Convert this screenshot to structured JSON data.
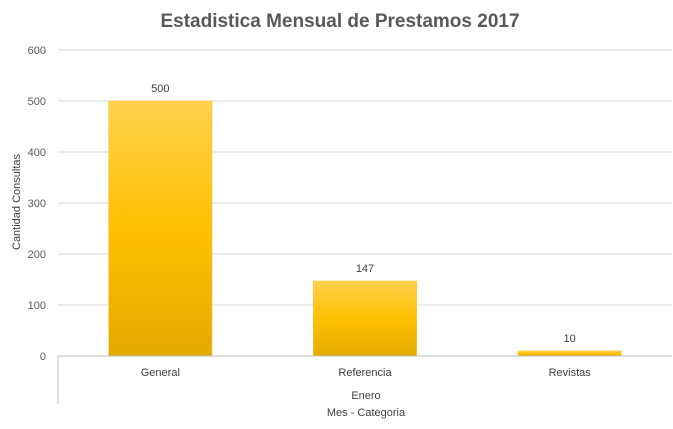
{
  "chart_data": {
    "type": "bar",
    "title": "Estadistica Mensual de Prestamos 2017",
    "xlabel": "Mes - Categoria",
    "ylabel": "Cantidad Consultas",
    "group_label": "Enero",
    "categories": [
      "General",
      "Referencia",
      "Revistas"
    ],
    "values": [
      500,
      147,
      10
    ],
    "data_labels": [
      "500",
      "147",
      "10"
    ],
    "ylim": [
      0,
      600
    ],
    "yticks": [
      0,
      100,
      200,
      300,
      400,
      500,
      600
    ],
    "grid": true,
    "legend": "none",
    "colors": {
      "bar_top": "#ffd24d",
      "bar_mid": "#ffc000",
      "bar_bottom": "#e3ab00",
      "grid": "#d9d9d9",
      "axis": "#bfbfbf"
    }
  }
}
